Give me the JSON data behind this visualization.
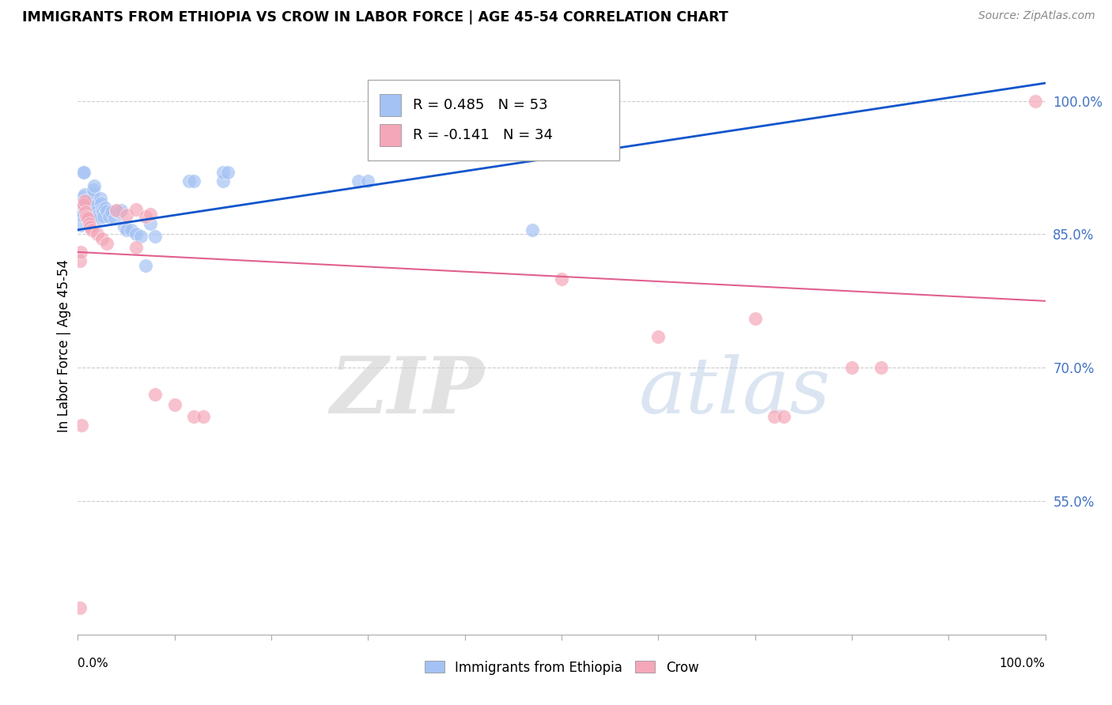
{
  "title": "IMMIGRANTS FROM ETHIOPIA VS CROW IN LABOR FORCE | AGE 45-54 CORRELATION CHART",
  "source": "Source: ZipAtlas.com",
  "ylabel": "In Labor Force | Age 45-54",
  "xlim": [
    0.0,
    1.0
  ],
  "ylim": [
    0.4,
    1.05
  ],
  "yticks": [
    0.55,
    0.7,
    0.85,
    1.0
  ],
  "ytick_labels": [
    "55.0%",
    "70.0%",
    "85.0%",
    "100.0%"
  ],
  "legend_blue_r": "R = 0.485",
  "legend_blue_n": "N = 53",
  "legend_pink_r": "R = -0.141",
  "legend_pink_n": "N = 34",
  "blue_color": "#a4c2f4",
  "pink_color": "#f4a7b9",
  "blue_line_color": "#1155cc",
  "pink_line_color": "#e06090",
  "watermark_zip": "ZIP",
  "watermark_atlas": "atlas",
  "background_color": "#ffffff",
  "blue_scatter": [
    [
      0.001,
      0.88
    ],
    [
      0.002,
      0.878
    ],
    [
      0.003,
      0.86
    ],
    [
      0.004,
      0.872
    ],
    [
      0.005,
      0.892
    ],
    [
      0.006,
      0.88
    ],
    [
      0.007,
      0.895
    ],
    [
      0.008,
      0.885
    ],
    [
      0.009,
      0.888
    ],
    [
      0.01,
      0.878
    ],
    [
      0.011,
      0.883
    ],
    [
      0.012,
      0.875
    ],
    [
      0.013,
      0.87
    ],
    [
      0.014,
      0.888
    ],
    [
      0.015,
      0.895
    ],
    [
      0.016,
      0.9
    ],
    [
      0.017,
      0.905
    ],
    [
      0.018,
      0.883
    ],
    [
      0.019,
      0.882
    ],
    [
      0.02,
      0.876
    ],
    [
      0.021,
      0.872
    ],
    [
      0.022,
      0.868
    ],
    [
      0.023,
      0.89
    ],
    [
      0.024,
      0.885
    ],
    [
      0.025,
      0.878
    ],
    [
      0.026,
      0.875
    ],
    [
      0.027,
      0.87
    ],
    [
      0.028,
      0.88
    ],
    [
      0.03,
      0.876
    ],
    [
      0.032,
      0.87
    ],
    [
      0.035,
      0.875
    ],
    [
      0.038,
      0.868
    ],
    [
      0.04,
      0.876
    ],
    [
      0.042,
      0.875
    ],
    [
      0.045,
      0.877
    ],
    [
      0.048,
      0.858
    ],
    [
      0.05,
      0.855
    ],
    [
      0.055,
      0.855
    ],
    [
      0.06,
      0.85
    ],
    [
      0.065,
      0.848
    ],
    [
      0.07,
      0.815
    ],
    [
      0.075,
      0.862
    ],
    [
      0.08,
      0.848
    ],
    [
      0.115,
      0.91
    ],
    [
      0.12,
      0.91
    ],
    [
      0.15,
      0.91
    ],
    [
      0.29,
      0.91
    ],
    [
      0.3,
      0.91
    ],
    [
      0.47,
      0.855
    ],
    [
      0.005,
      0.92
    ],
    [
      0.006,
      0.92
    ],
    [
      0.15,
      0.92
    ],
    [
      0.155,
      0.92
    ]
  ],
  "pink_scatter": [
    [
      0.002,
      0.82
    ],
    [
      0.003,
      0.83
    ],
    [
      0.005,
      0.883
    ],
    [
      0.006,
      0.883
    ],
    [
      0.007,
      0.888
    ],
    [
      0.008,
      0.875
    ],
    [
      0.009,
      0.87
    ],
    [
      0.01,
      0.868
    ],
    [
      0.012,
      0.862
    ],
    [
      0.013,
      0.858
    ],
    [
      0.014,
      0.855
    ],
    [
      0.02,
      0.85
    ],
    [
      0.025,
      0.845
    ],
    [
      0.03,
      0.84
    ],
    [
      0.04,
      0.877
    ],
    [
      0.05,
      0.872
    ],
    [
      0.06,
      0.878
    ],
    [
      0.07,
      0.87
    ],
    [
      0.08,
      0.67
    ],
    [
      0.1,
      0.658
    ],
    [
      0.12,
      0.645
    ],
    [
      0.13,
      0.645
    ],
    [
      0.5,
      0.8
    ],
    [
      0.6,
      0.735
    ],
    [
      0.7,
      0.755
    ],
    [
      0.72,
      0.645
    ],
    [
      0.73,
      0.645
    ],
    [
      0.8,
      0.7
    ],
    [
      0.83,
      0.7
    ],
    [
      0.99,
      1.0
    ],
    [
      0.002,
      0.43
    ],
    [
      0.06,
      0.835
    ],
    [
      0.075,
      0.873
    ],
    [
      0.004,
      0.635
    ]
  ],
  "blue_line_x": [
    0.0,
    1.0
  ],
  "blue_line_y": [
    0.855,
    1.02
  ],
  "pink_line_x": [
    0.0,
    1.0
  ],
  "pink_line_y": [
    0.83,
    0.775
  ]
}
